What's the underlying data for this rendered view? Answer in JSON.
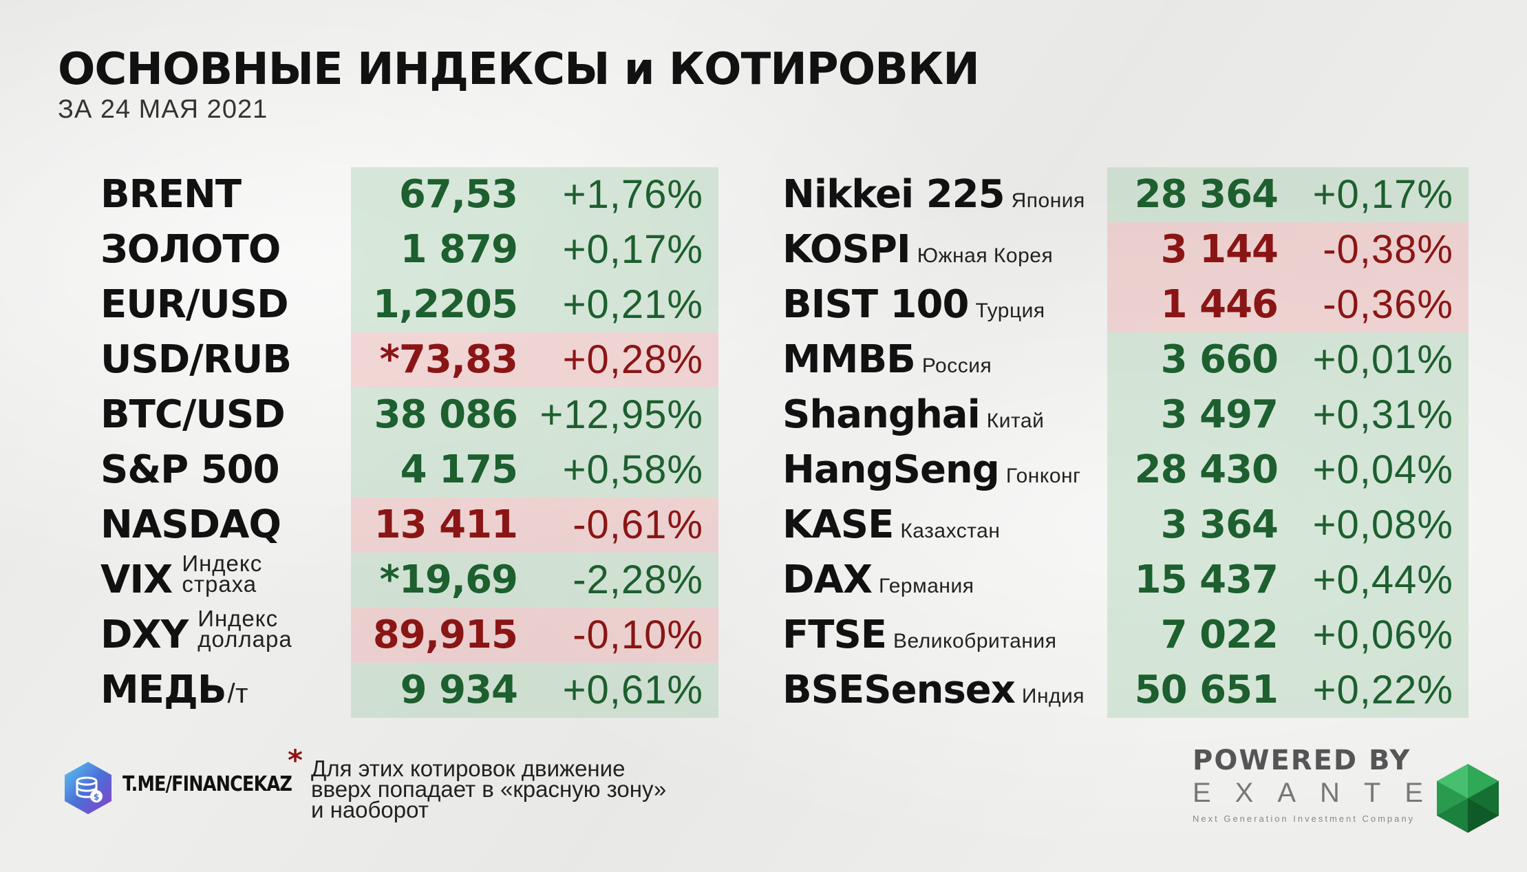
{
  "header": {
    "title": "ОСНОВНЫЕ ИНДЕКСЫ и КОТИРОВКИ",
    "subtitle": "ЗА 24 МАЯ 2021"
  },
  "left_quotes": [
    {
      "name": "BRENT",
      "value": "67,53",
      "change": "+1,76%",
      "zone": "green"
    },
    {
      "name": "ЗОЛОТО",
      "value": "1 879",
      "change": "+0,17%",
      "zone": "green"
    },
    {
      "name": "EUR/USD",
      "value": "1,2205",
      "change": "+0,21%",
      "zone": "green"
    },
    {
      "name": "USD/RUB",
      "value": "*73,83",
      "change": "+0,28%",
      "zone": "red"
    },
    {
      "name": "BTC/USD",
      "value": "38 086",
      "change": "+12,95%",
      "zone": "green"
    },
    {
      "name": "S&P 500",
      "value": "4 175",
      "change": "+0,58%",
      "zone": "green"
    },
    {
      "name": "NASDAQ",
      "value": "13 411",
      "change": "-0,61%",
      "zone": "red"
    },
    {
      "name": "VIX",
      "sub1": "Индекс",
      "sub2": "страха",
      "value": "*19,69",
      "change": "-2,28%",
      "zone": "green"
    },
    {
      "name": "DXY",
      "sub1": "Индекс",
      "sub2": "доллара",
      "value": "89,915",
      "change": "-0,10%",
      "zone": "red"
    },
    {
      "name": "МЕДЬ",
      "unit": "/т",
      "value": "9 934",
      "change": "+0,61%",
      "zone": "green"
    }
  ],
  "right_quotes": [
    {
      "name": "Nikkei 225",
      "country": "Япония",
      "value": "28 364",
      "change": "+0,17%",
      "zone": "green"
    },
    {
      "name": "KOSPI",
      "country": "Южная Корея",
      "value": "3 144",
      "change": "-0,38%",
      "zone": "red"
    },
    {
      "name": "BIST 100",
      "country": "Турция",
      "value": "1 446",
      "change": "-0,36%",
      "zone": "red"
    },
    {
      "name": "ММВБ",
      "country": "Россия",
      "value": "3 660",
      "change": "+0,01%",
      "zone": "green"
    },
    {
      "name": "Shanghai",
      "country": "Китай",
      "value": "3 497",
      "change": "+0,31%",
      "zone": "green"
    },
    {
      "name": "HangSeng",
      "country": "Гонконг",
      "value": "28 430",
      "change": "+0,04%",
      "zone": "green"
    },
    {
      "name": "KASE",
      "country": "Казахстан",
      "value": "3 364",
      "change": "+0,08%",
      "zone": "green"
    },
    {
      "name": "DAX",
      "country": "Германия",
      "value": "15 437",
      "change": "+0,44%",
      "zone": "green"
    },
    {
      "name": "FTSE",
      "country": "Великобритания",
      "value": "7 022",
      "change": "+0,06%",
      "zone": "green"
    },
    {
      "name": "BSESensex",
      "country": "Индия",
      "value": "50 651",
      "change": "+0,22%",
      "zone": "green"
    }
  ],
  "footer": {
    "telegram": "T.ME/FINANCEKAZ",
    "asterisk": "*",
    "note_lines": [
      "Для этих котировок движение",
      "вверх попадает в «красную зону»",
      "и наоборот"
    ],
    "powered_by": "POWERED BY",
    "brand": "EXANTE",
    "tagline": "Next Generation Investment Company"
  },
  "colors": {
    "positive_text": "#1d5f2f",
    "negative_text": "#8a1515",
    "green_zone": "#c6dcc9",
    "red_zone": "#ecc9c7"
  },
  "icons": [
    "coin-stack-icon",
    "emerald-gem-icon"
  ]
}
